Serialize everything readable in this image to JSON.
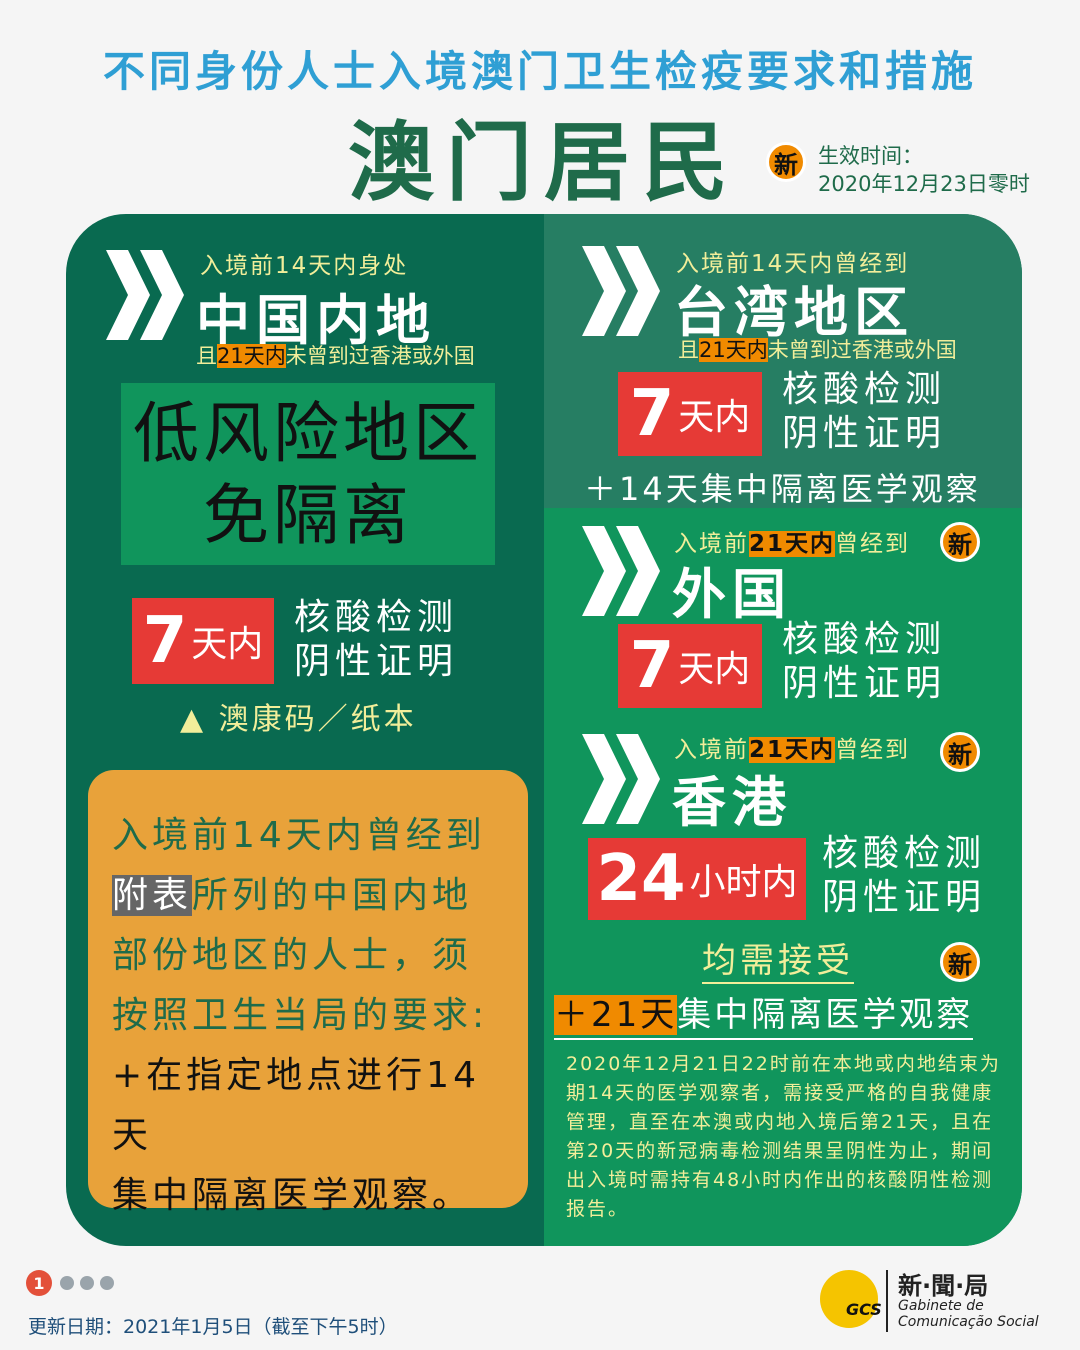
{
  "header": {
    "supertitle": "不同身份人士入境澳门卫生检疫要求和措施",
    "title": "澳门居民",
    "new_badge": "新",
    "effective_label": "生效时间：",
    "effective_value": "2020年12月23日零时"
  },
  "left": {
    "pre": "入境前14天内身处",
    "region": "中国内地",
    "cond_a": "且",
    "cond_hl": "21天内",
    "cond_b": "未曾到过香港或外国",
    "risk_line1": "低风险地区",
    "risk_line2": "免隔离",
    "test_num": "7",
    "test_unit": "天内",
    "test_l1": "核酸检测",
    "test_l2": "阴性证明",
    "code_line": "▲ 澳康码／纸本",
    "box": {
      "l1": "入境前14天内曾经到",
      "hl": "附表",
      "l2": "所列的中国内地",
      "l3": "部份地区的人士，须",
      "l4": "按照卫生当局的要求:",
      "l5": "+在指定地点进行14天",
      "l6": "集中隔离医学观察。"
    }
  },
  "taiwan": {
    "pre": "入境前14天内曾经到",
    "region": "台湾地区",
    "cond_a": "且",
    "cond_hl": "21天内",
    "cond_b": "未曾到过香港或外国",
    "test_num": "7",
    "test_unit": "天内",
    "test_l1": "核酸检测",
    "test_l2": "阴性证明",
    "quarantine": "＋14天集中隔离医学观察"
  },
  "foreign": {
    "pre_a": "入境前",
    "pre_hl": "21天内",
    "pre_b": "曾经到",
    "badge": "新",
    "region": "外国",
    "test_num": "7",
    "test_unit": "天内",
    "test_l1": "核酸检测",
    "test_l2": "阴性证明"
  },
  "hongkong": {
    "pre_a": "入境前",
    "pre_hl": "21天内",
    "pre_b": "曾经到",
    "badge": "新",
    "region": "香港",
    "test_num": "24",
    "test_unit": "小时内",
    "test_l1": "核酸检测",
    "test_l2": "阴性证明",
    "must": "均需接受",
    "must_badge": "新",
    "q_hl": "＋21天",
    "q_rest": "集中隔离医学观察",
    "note": "2020年12月21日22时前在本地或内地结束为期14天的医学观察者，需接受严格的自我健康管理，直至在本澳或内地入境后第21天，且在第20天的新冠病毒检测结果呈阴性为止，期间出入境时需持有48小时内作出的核酸阴性检测报告。"
  },
  "footer": {
    "page": "1",
    "updated": "更新日期：2021年1月5日（截至下午5时）",
    "logo_cn": "新·聞·局",
    "logo_pt1": "Gabinete de",
    "logo_pt2": "Comunicação Social",
    "logo_mark": "GCS"
  },
  "colors": {
    "blue": "#2f9fd4",
    "dark_green": "#096a50",
    "mid_green": "#267e63",
    "green": "#10955c",
    "red": "#e63a36",
    "orange": "#f08a00",
    "box": "#e8a23a",
    "cream": "#f2ee9a"
  }
}
